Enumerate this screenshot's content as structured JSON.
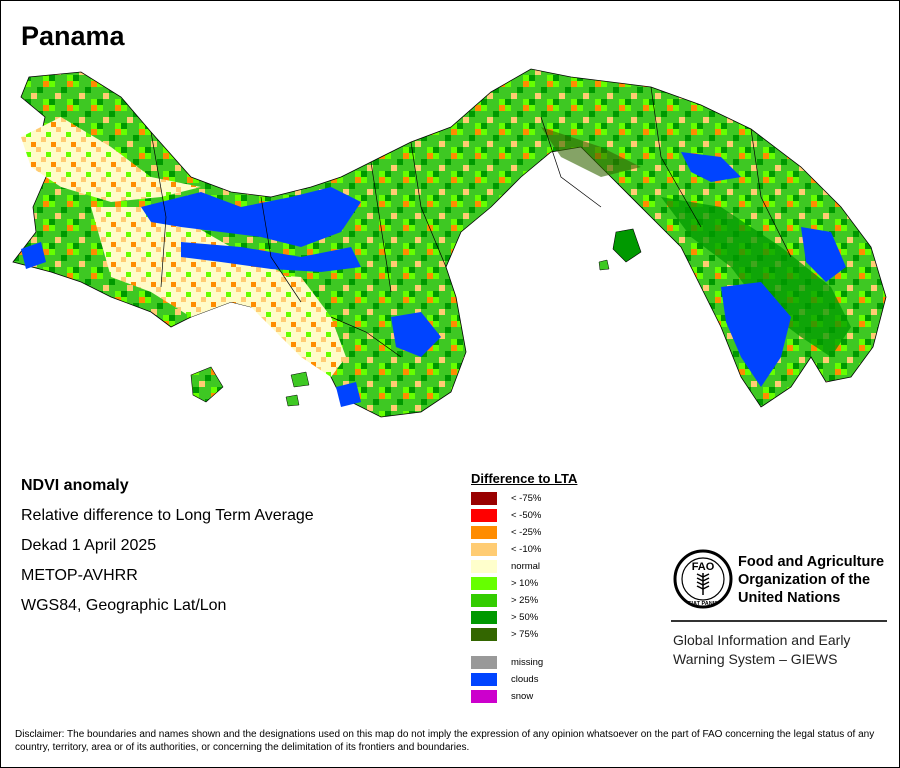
{
  "map": {
    "title": "Panama",
    "colors": {
      "land_normal": "#fffbc8",
      "land_green": "#3ec823",
      "ocean": "#ffffff",
      "boundary": "#000000"
    }
  },
  "info": {
    "line1": "NDVI anomaly",
    "line2": "Relative difference to Long Term Average",
    "line3": "Dekad 1 April 2025",
    "line4": "METOP-AVHRR",
    "line5": "WGS84, Geographic Lat/Lon"
  },
  "legend": {
    "title": "Difference to LTA",
    "items": [
      {
        "label": "< -75%",
        "color": "#990000"
      },
      {
        "label": "< -50%",
        "color": "#ff0000"
      },
      {
        "label": "< -25%",
        "color": "#ff8c00"
      },
      {
        "label": "< -10%",
        "color": "#ffcc73"
      },
      {
        "label": "normal",
        "color": "#ffffcc"
      },
      {
        "label": "> 10%",
        "color": "#66ff00"
      },
      {
        "label": "> 25%",
        "color": "#33cc00"
      },
      {
        "label": "> 50%",
        "color": "#009900"
      },
      {
        "label": "> 75%",
        "color": "#336600"
      }
    ],
    "extra": [
      {
        "label": "missing",
        "color": "#999999"
      },
      {
        "label": "clouds",
        "color": "#0044ff"
      },
      {
        "label": "snow",
        "color": "#cc00cc"
      }
    ]
  },
  "org": {
    "logo_icon": "fao-logo-icon",
    "logo_text": "FAO",
    "logo_motto": "FIAT PANIS",
    "name_line1": "Food and Agriculture",
    "name_line2": "Organization of the",
    "name_line3": "United Nations",
    "giews_line1": "Global Information and Early",
    "giews_line2": "Warning System – GIEWS"
  },
  "disclaimer": "Disclaimer: The boundaries and names shown and the designations used on this map do not imply the expression of any opinion whatsoever on the part of FAO concerning the legal status of any country, territory, area or of its authorities, or concerning the delimitation of its frontiers and boundaries."
}
